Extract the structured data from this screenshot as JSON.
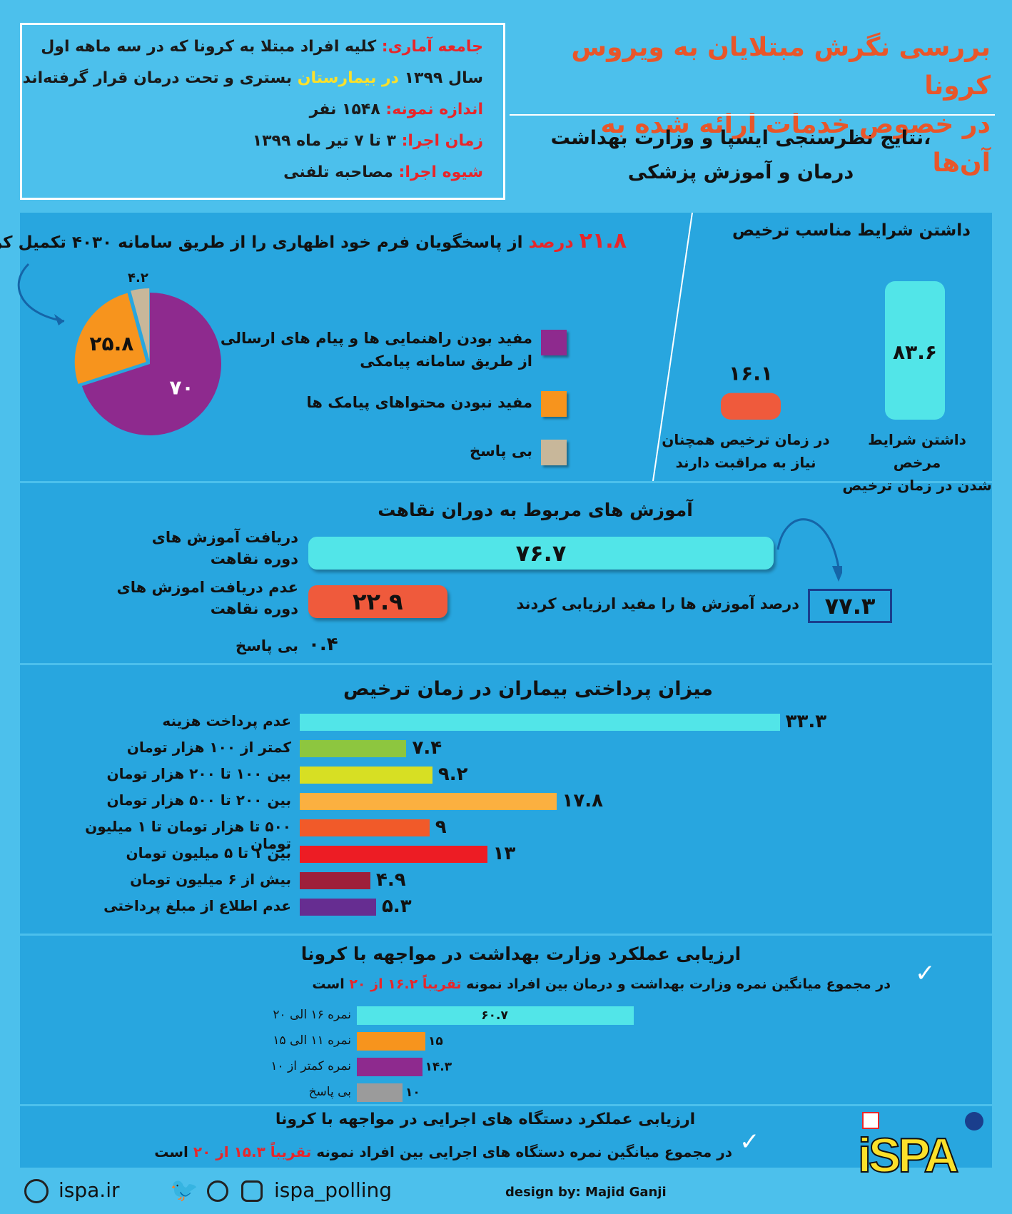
{
  "header": {
    "title_line1": "بررسی نگرش مبتلایان به ویروس کرونا",
    "title_line2": "در خصوص خدمات ارائه شده به آن‌ها",
    "subtitle_line1": "نتایج نظرسنجی ایسپا و وزارت بهداشت،",
    "subtitle_line2": "درمان و آموزش پزشکی"
  },
  "info": {
    "population_label": "جامعه آماری:",
    "population_text1": "کلیه افراد مبتلا به کرونا که در سه ماهه اول",
    "population_text2a": "سال ۱۳۹۹",
    "population_hl": "در بیمارستان",
    "population_text2b": "بستری و تحت درمان  قرار گرفته‌اند",
    "sample_label": "اندازه نمونه:",
    "sample_text": "۱۵۴۸  نفر",
    "time_label": "زمان اجرا:",
    "time_text": "۳ تا ۷ تیر ماه ۱۳۹۹",
    "method_label": "شیوه اجرا:",
    "method_text": "مصاحبه تلفنی"
  },
  "pie_section": {
    "headline_pct": "۲۱.۸",
    "headline_word": "درصد",
    "headline_text": "از پاسخگویان فرم خود اظهاری را از طریق سامانه ۴۰۳۰ تکمیل کرده‌اند",
    "legend": [
      {
        "text1": "مفید بودن راهنمایی ها و پیام های ارسالی",
        "text2": "از طریق سامانه پیامکی",
        "color": "#8e2a8e"
      },
      {
        "text1": "مفید نبودن محتواهای  پیامک ها",
        "text2": "",
        "color": "#f7941d"
      },
      {
        "text1": "بی پاسخ",
        "text2": "",
        "color": "#c8b79a"
      }
    ]
  },
  "discharge_section": {
    "title": "داشتن شرایط مناسب ترخیص",
    "bars": [
      {
        "label1": "داشتن شرایط مرخص",
        "label2": "شدن در زمان ترخیص",
        "value_text": "۸۳.۶",
        "color": "#52e5e8"
      },
      {
        "label1": "در زمان ترخیص همچنان",
        "label2": "نیاز به مراقبت دارند",
        "value_text": "۱۶.۱",
        "color": "#ef5a3c"
      }
    ]
  },
  "rehab_section": {
    "title": "آموزش های مربوط به دوران نقاهت",
    "rows": [
      {
        "label1": "دریافت آموزش های",
        "label2": "دوره نقاهت",
        "value_text": "۷۶.۷",
        "color": "#52e5e8"
      },
      {
        "label1": "عدم دریافت اموزش های",
        "label2": "دوره نقاهت",
        "value_text": "۲۲.۹",
        "color": "#ef5a3c"
      },
      {
        "label1": "بی پاسخ",
        "label2": "",
        "value_text": "۰.۴",
        "color": ""
      }
    ],
    "assess_value": "۷۷.۳",
    "assess_text": "درصد آموزش ها را مفید ارزیابی کردند"
  },
  "payment_section": {
    "title": "میزان پرداختی بیماران در زمان ترخیص",
    "rows": [
      {
        "label": "عدم پرداخت هزینه",
        "value_text": "۳۳.۳",
        "color": "#52e5e8"
      },
      {
        "label": "کمتر از ۱۰۰ هزار تومان",
        "value_text": "۷.۴",
        "color": "#8dc63f"
      },
      {
        "label": "بین ۱۰۰ تا ۲۰۰ هزار تومان",
        "value_text": "۹.۲",
        "color": "#d7df23"
      },
      {
        "label": "بین ۲۰۰ تا ۵۰۰ هزار تومان",
        "value_text": "۱۷.۸",
        "color": "#fbb040"
      },
      {
        "label": "۵۰۰ تا هزار تومان تا ۱ میلیون تومان",
        "value_text": "۹",
        "color": "#f15a29"
      },
      {
        "label": "بین ۱ تا ۵ میلیون تومان",
        "value_text": "۱۳",
        "color": "#ed1c24"
      },
      {
        "label": "بیش از ۶ میلیون تومان",
        "value_text": "۴.۹",
        "color": "#9e1f3a"
      },
      {
        "label": "عدم اطلاع از مبلغ پرداختی",
        "value_text": "۵.۳",
        "color": "#662d91"
      }
    ]
  },
  "ministry_section": {
    "title": "ارزیابی عملکرد وزارت بهداشت در مواجهه با کرونا",
    "sentence_a": "در مجموع میانگین نمره وزارت بهداشت و درمان بین افراد نمونه",
    "sentence_hl": "تقریباً ۱۶.۲ از ۲۰",
    "sentence_b": "است",
    "rows": [
      {
        "label": "نمره ۱۶ الی ۲۰",
        "value_text": "۶۰.۷",
        "color": "#52e5e8"
      },
      {
        "label": "نمره ۱۱ الی ۱۵",
        "value_text": "۱۵",
        "color": "#f7941d"
      },
      {
        "label": "نمره کمتر از ۱۰",
        "value_text": "۱۴.۳",
        "color": "#8e2a8e"
      },
      {
        "label": "بی پاسخ",
        "value_text": "۱۰",
        "color": "#9b9b9b"
      }
    ]
  },
  "executive_section": {
    "title": "ارزیابی عملکرد دستگاه های اجرایی در مواجهه با کرونا",
    "sentence_a": "در مجموع میانگین نمره دستگاه های اجرایی بین افراد نمونه",
    "sentence_hl": "تقریباً ۱۵.۳ از ۲۰",
    "sentence_b": "است"
  },
  "footer": {
    "website": "ispa.ir",
    "social": "ispa_polling",
    "credit": "design by: Majid Ganji",
    "logo_text": "iSPA"
  },
  "chart_data": [
    {
      "type": "pie",
      "title": "",
      "slices": [
        {
          "label": "مفید بودن راهنمایی ها و پیام های ارسالی از طریق سامانه پیامکی",
          "value": 70
        },
        {
          "label": "مفید نبودن محتواهای  پیامک ها",
          "value": 25.8
        },
        {
          "label": "بی پاسخ",
          "value": 4.2
        }
      ]
    },
    {
      "type": "bar",
      "title": "داشتن شرایط مناسب ترخیص",
      "categories": [
        "داشتن شرایط مرخص شدن در زمان ترخیص",
        "در زمان ترخیص همچنان نیاز به مراقبت دارند"
      ],
      "values": [
        83.6,
        16.1
      ]
    },
    {
      "type": "bar",
      "title": "آموزش های مربوط به دوران نقاهت",
      "categories": [
        "دریافت آموزش های دوره نقاهت",
        "عدم دریافت اموزش های دوره نقاهت",
        "بی پاسخ"
      ],
      "values": [
        76.7,
        22.9,
        0.4
      ]
    },
    {
      "type": "bar",
      "title": "میزان پرداختی بیماران در زمان ترخیص",
      "categories": [
        "عدم پرداخت هزینه",
        "کمتر از ۱۰۰ هزار تومان",
        "بین ۱۰۰ تا ۲۰۰ هزار تومان",
        "بین ۲۰۰ تا ۵۰۰ هزار تومان",
        "۵۰۰ تا هزار تومان تا ۱ میلیون تومان",
        "بین ۱ تا ۵ میلیون تومان",
        "بیش از ۶ میلیون تومان",
        "عدم اطلاع از مبلغ پرداختی"
      ],
      "values": [
        33.3,
        7.4,
        9.2,
        17.8,
        9,
        13,
        4.9,
        5.3
      ]
    },
    {
      "type": "bar",
      "title": "ارزیابی عملکرد وزارت بهداشت در مواجهه با کرونا",
      "categories": [
        "نمره ۱۶ الی ۲۰",
        "نمره ۱۱ الی ۱۵",
        "نمره کمتر از ۱۰",
        "بی پاسخ"
      ],
      "values": [
        60.7,
        15,
        14.3,
        10
      ]
    }
  ]
}
